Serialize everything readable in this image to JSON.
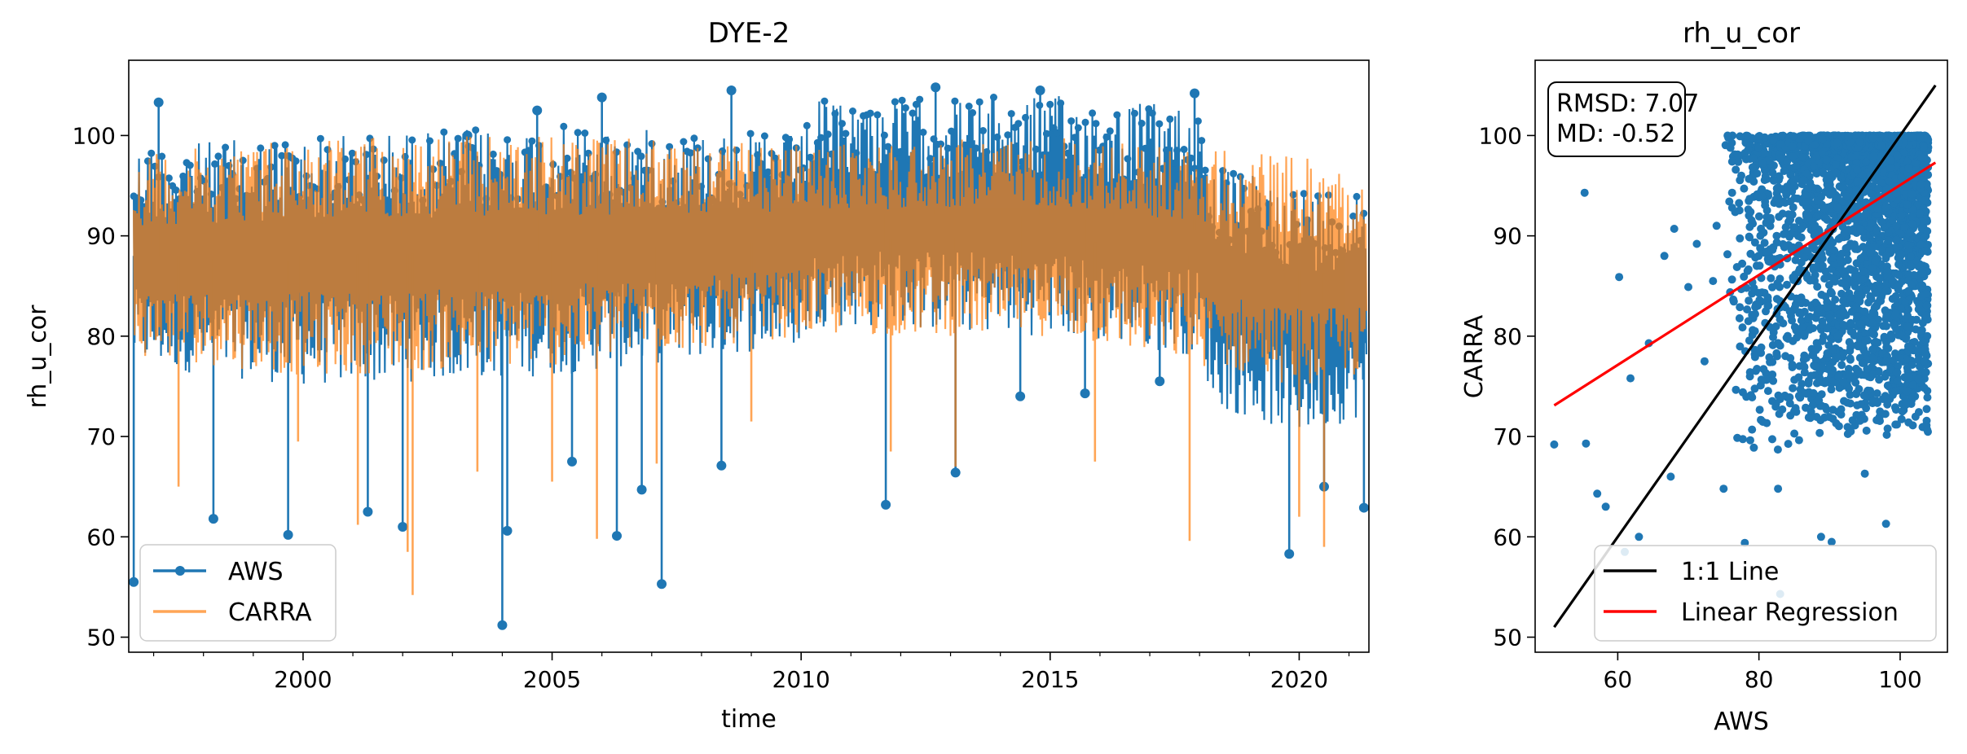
{
  "chart_data": [
    {
      "type": "line",
      "title": "DYE-2",
      "xlabel": "time",
      "ylabel": "rh_u_cor",
      "xlim": [
        1996.5,
        2021.4
      ],
      "ylim": [
        48.5,
        107.5
      ],
      "x_ticks": [
        2000,
        2005,
        2010,
        2015,
        2020
      ],
      "y_ticks": [
        50,
        60,
        70,
        80,
        90,
        100
      ],
      "legend_position": "lower-left",
      "series": [
        {
          "name": "AWS",
          "color": "#1f77b4",
          "marker": "circle",
          "band": {
            "x": [
              1996.6,
              2000,
              2005,
              2010,
              2010.3,
              2015,
              2018,
              2018.3,
              2020,
              2021.3
            ],
            "high": [
              99,
              100,
              101,
              100,
              103.5,
              104,
              103,
              97,
              95,
              95
            ],
            "low": [
              77,
              75,
              76,
              79,
              81,
              80,
              78,
              73,
              70,
              72
            ]
          },
          "spikes": [
            [
              1996.6,
              55.5
            ],
            [
              1997.1,
              103.3
            ],
            [
              1998.2,
              61.8
            ],
            [
              1999.7,
              60.2
            ],
            [
              2001.3,
              62.5
            ],
            [
              2002.0,
              61.0
            ],
            [
              2004.0,
              51.2
            ],
            [
              2004.1,
              60.6
            ],
            [
              2005.4,
              67.5
            ],
            [
              2006.3,
              60.1
            ],
            [
              2006.8,
              64.7
            ],
            [
              2007.2,
              55.3
            ],
            [
              2008.4,
              67.1
            ],
            [
              2011.7,
              63.2
            ],
            [
              2013.1,
              66.4
            ],
            [
              2014.4,
              74.0
            ],
            [
              2015.7,
              74.3
            ],
            [
              2017.2,
              75.5
            ],
            [
              2019.8,
              58.3
            ],
            [
              2020.5,
              65.0
            ],
            [
              2021.3,
              62.9
            ],
            [
              2006.0,
              103.8
            ],
            [
              2008.6,
              104.5
            ],
            [
              2012.7,
              104.8
            ],
            [
              2014.8,
              104.5
            ],
            [
              2017.9,
              104.2
            ],
            [
              2004.7,
              102.5
            ],
            [
              2003.3,
              100.0
            ]
          ]
        },
        {
          "name": "CARRA",
          "color": "#ff7f0e",
          "opacity": 0.7,
          "band": {
            "x": [
              1996.6,
              2000,
              2005,
              2010,
              2015,
              2020,
              2021.3
            ],
            "high": [
              98,
              100,
              100,
              99,
              100,
              98,
              96
            ],
            "low": [
              78,
              76,
              77,
              80,
              80,
              75,
              76
            ]
          },
          "spikes": [
            [
              2002.2,
              54.2
            ],
            [
              2002.1,
              58.5
            ],
            [
              2001.1,
              61.2
            ],
            [
              2003.5,
              66.5
            ],
            [
              2005.0,
              65.5
            ],
            [
              2005.9,
              59.8
            ],
            [
              2007.1,
              67.3
            ],
            [
              2009.0,
              71.5
            ],
            [
              2011.8,
              68.5
            ],
            [
              2013.1,
              67.0
            ],
            [
              2015.9,
              67.5
            ],
            [
              2017.8,
              59.6
            ],
            [
              2020.0,
              62.0
            ],
            [
              2020.5,
              59.0
            ],
            [
              1997.5,
              65.0
            ],
            [
              1999.9,
              69.5
            ]
          ]
        }
      ]
    },
    {
      "type": "scatter",
      "title": "rh_u_cor",
      "xlabel": "AWS",
      "ylabel": "CARRA",
      "xlim": [
        48.3,
        106.7
      ],
      "ylim": [
        48.5,
        107.5
      ],
      "x_ticks": [
        60,
        80,
        100
      ],
      "y_ticks": [
        50,
        60,
        70,
        80,
        90,
        100
      ],
      "annotation": [
        "RMSD: 7.07",
        "MD: -0.52"
      ],
      "legend_position": "lower-right",
      "point_color": "#1f77b4",
      "points_sample": [
        [
          51,
          69.2
        ],
        [
          55.5,
          69.3
        ],
        [
          55.3,
          94.3
        ],
        [
          57.1,
          64.3
        ],
        [
          58.3,
          63.0
        ],
        [
          60.2,
          85.9
        ],
        [
          61.0,
          58.5
        ],
        [
          61.8,
          75.8
        ],
        [
          63.0,
          60.0
        ],
        [
          64.4,
          79.3
        ],
        [
          66.6,
          88.0
        ],
        [
          67.5,
          66.0
        ],
        [
          68.0,
          90.7
        ],
        [
          70.0,
          84.9
        ],
        [
          71.2,
          89.2
        ],
        [
          72.3,
          77.5
        ],
        [
          73.5,
          85.5
        ],
        [
          75.0,
          64.8
        ],
        [
          76.2,
          94.3
        ],
        [
          78.0,
          59.4
        ],
        [
          79.7,
          87.0
        ],
        [
          82.7,
          64.8
        ],
        [
          83.0,
          54.3
        ],
        [
          88.8,
          60.0
        ],
        [
          90.3,
          59.5
        ],
        [
          95.0,
          66.3
        ],
        [
          98.0,
          61.3
        ],
        [
          101.0,
          74.5
        ],
        [
          103.0,
          84.0
        ],
        [
          80.5,
          97.2
        ],
        [
          77.5,
          96.0
        ],
        [
          74.0,
          91.0
        ],
        [
          78.5,
          81.5
        ],
        [
          85.0,
          72.5
        ],
        [
          93.0,
          70.5
        ]
      ],
      "cluster": {
        "x_range": [
          75,
          104
        ],
        "y_range": [
          68,
          100
        ]
      },
      "series": [
        {
          "name": "1:1 Line",
          "color": "#000000",
          "x": [
            51,
            105
          ],
          "y": [
            51,
            105
          ]
        },
        {
          "name": "Linear Regression",
          "color": "#ff0000",
          "x": [
            51,
            105
          ],
          "y": [
            73.1,
            97.3
          ]
        }
      ]
    }
  ]
}
